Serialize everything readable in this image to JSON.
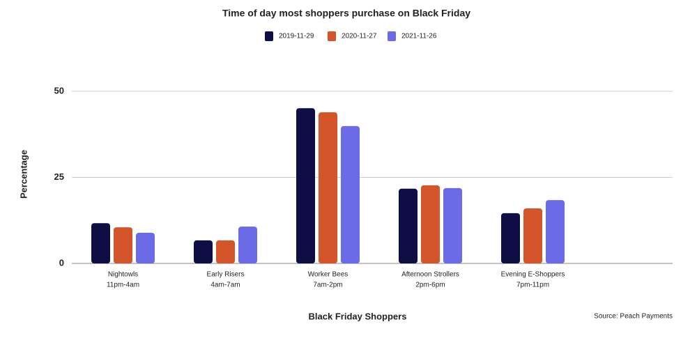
{
  "chart_data": {
    "type": "bar",
    "title": "Time of day most shoppers purchase on Black Friday",
    "x_label": "Black Friday Shoppers",
    "y_label": "Percentage",
    "source": "Source: Peach Payments",
    "categories": [
      "Nightowls",
      "Early Risers",
      "Worker Bees",
      "Afternoon Strollers",
      "Evening E-Shoppers"
    ],
    "category_ranges": [
      "11pm-4am",
      "4am-7am",
      "7am-2pm",
      "2pm-6pm",
      "7pm-11pm"
    ],
    "series": [
      {
        "name": "2019-11-29",
        "color": "#0e0e45",
        "values": [
          11.7,
          6.7,
          45.1,
          21.7,
          14.6
        ]
      },
      {
        "name": "2020-11-27",
        "color": "#d4552a",
        "values": [
          10.5,
          6.7,
          43.9,
          22.7,
          16
        ]
      },
      {
        "name": "2021-11-26",
        "color": "#6b6be8",
        "values": [
          8.9,
          10.7,
          39.9,
          21.9,
          18.4
        ]
      }
    ],
    "ylim": [
      0,
      50
    ],
    "yticks": [
      0,
      25,
      50
    ],
    "grid": true
  }
}
